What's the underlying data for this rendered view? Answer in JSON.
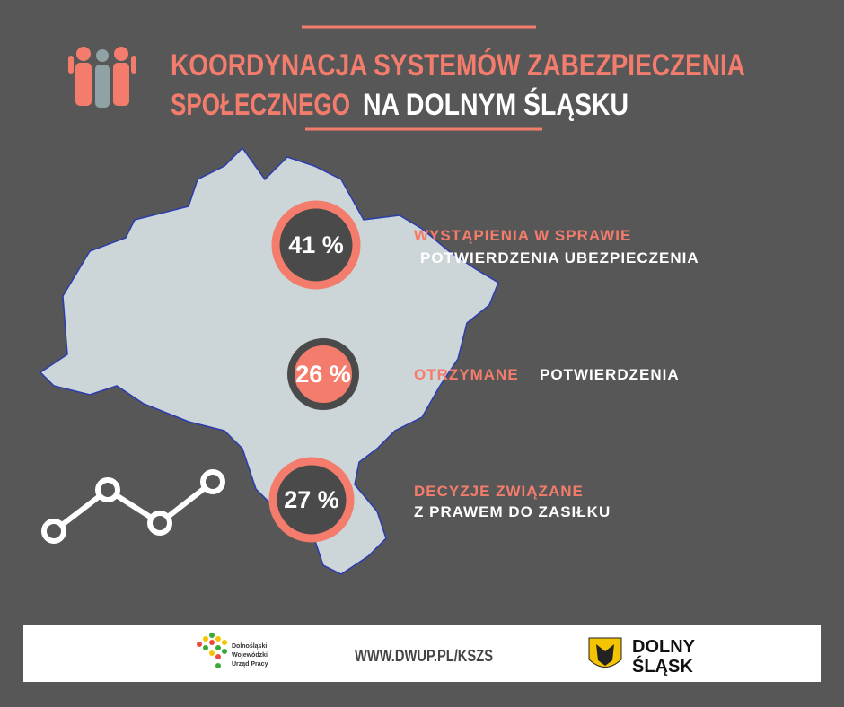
{
  "header": {
    "title_line1": "KOORDYNACJA SYSTEMÓW ZABEZPIECZENIA",
    "title_line2_a": "SPOŁECZNEGO",
    "title_line2_b": "NA DOLNYM ŚLĄSKU"
  },
  "stats": [
    {
      "value": "41 %",
      "label_a": "WYSTĄPIENIA W SPRAWIE",
      "label_b": "POTWIERDZENIA UBEZPIECZENIA"
    },
    {
      "value": "26 %",
      "label_a": "OTRZYMANE",
      "label_b": "POTWIERDZENIA"
    },
    {
      "value": "27 %",
      "label_a": "DECYZJE ZWIĄZANE",
      "label_b": "Z PRAWEM DO ZASIŁKU"
    }
  ],
  "footer": {
    "org": [
      "Dolnośląski",
      "Wojewódzki",
      "Urząd Pracy"
    ],
    "url": "WWW.DWUP.PL/KSZS",
    "brand": [
      "DOLNY",
      "ŚLĄSK"
    ]
  }
}
